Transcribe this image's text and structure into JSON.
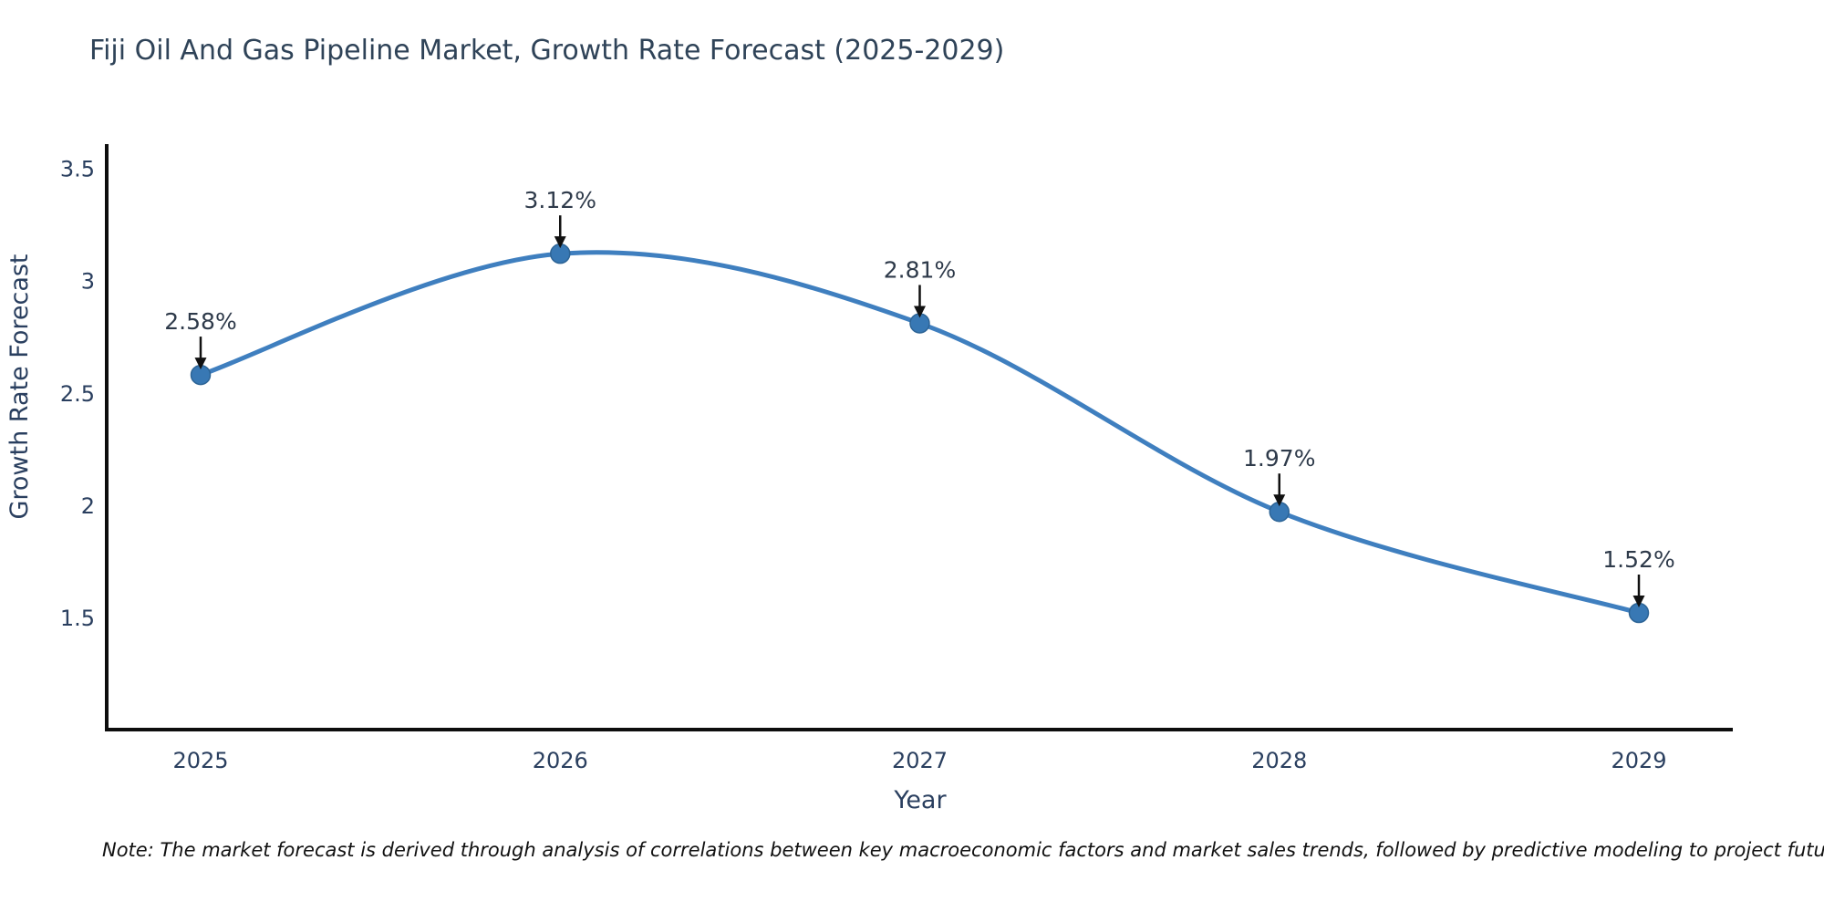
{
  "title": "Fiji Oil And Gas Pipeline Market, Growth Rate Forecast (2025-2029)",
  "note": "Note: The market forecast is derived through analysis of correlations between key macroeconomic factors and market sales trends, followed by predictive modeling to project future sales",
  "chart_data": {
    "type": "line",
    "title": "Fiji Oil And Gas Pipeline Market, Growth Rate Forecast (2025-2029)",
    "xlabel": "Year",
    "ylabel": "Growth Rate Forecast",
    "categories": [
      "2025",
      "2026",
      "2027",
      "2028",
      "2029"
    ],
    "series": [
      {
        "name": "Growth Rate Forecast",
        "values": [
          2.58,
          3.12,
          2.81,
          1.97,
          1.52
        ],
        "point_labels": [
          "2.58%",
          "3.12%",
          "2.81%",
          "1.97%",
          "1.52%"
        ]
      }
    ],
    "line_shape": "spline",
    "markers": true,
    "annotations_arrows": true,
    "ylim": [
      1.0,
      3.6
    ],
    "yticks": [
      "1.5",
      "2",
      "2.5",
      "3",
      "3.5"
    ],
    "ytick_values": [
      1.5,
      2.0,
      2.5,
      3.0,
      3.5
    ],
    "grid": false,
    "legend_position": "none",
    "colors": {
      "line": "#3f7fbf",
      "marker": "#3878b4",
      "marker_edge": "#2d6496",
      "axis_line": "#0d0d0d",
      "tick_text": "#2a3f5f",
      "annotation_text": "#2e3a4a",
      "arrow": "#111111",
      "background": "#ffffff"
    }
  }
}
